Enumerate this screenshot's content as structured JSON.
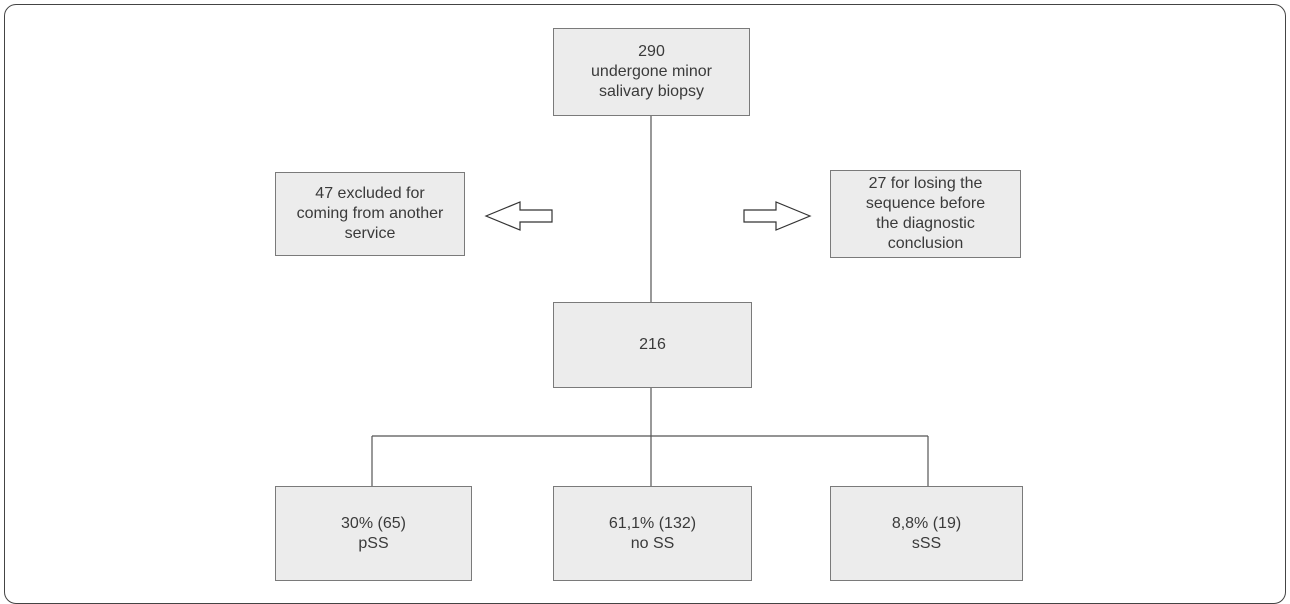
{
  "nodes": {
    "top": {
      "lines": [
        "290",
        "undergone minor",
        "salivary  biopsy"
      ]
    },
    "excluded_left": {
      "lines": [
        "47 excluded for",
        "coming from another",
        "service"
      ]
    },
    "excluded_right": {
      "lines": [
        "27 for losing the",
        "sequence before",
        "the diagnostic",
        "conclusion"
      ]
    },
    "middle": {
      "lines": [
        "216"
      ]
    },
    "result_pss": {
      "lines": [
        "30% (65)",
        "pSS"
      ]
    },
    "result_noss": {
      "lines": [
        "61,1% (132)",
        "no SS"
      ]
    },
    "result_sss": {
      "lines": [
        "8,8% (19)",
        "sSS"
      ]
    }
  }
}
